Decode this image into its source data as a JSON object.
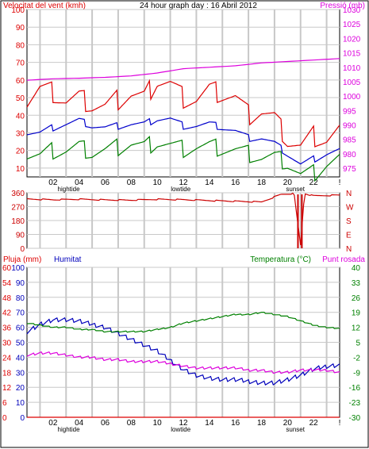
{
  "colors": {
    "wind": "#dd0000",
    "pressure": "#dd00dd",
    "gust_green": "#008000",
    "avg_blue": "#0000cc",
    "direction": "#cc0000",
    "rain": "#dd0000",
    "humidity": "#0000bb",
    "temperature": "#008000",
    "dewpoint": "#dd00dd",
    "grid": "#c8c8c8",
    "text_dark": "#000000"
  },
  "chart_data": [
    {
      "type": "line",
      "title": "24 hour graph day : 16 Abril 2012",
      "left_label": "Velocitat del vent (kmh)",
      "right_label": "Pressió (mb)",
      "ylim": [
        5,
        100
      ],
      "y2lim": [
        972,
        1030
      ],
      "y_ticks": [
        "10",
        "20",
        "30",
        "40",
        "50",
        "60",
        "70",
        "80",
        "90",
        "100"
      ],
      "y2_ticks": [
        "975",
        "980",
        "985",
        "990",
        "995",
        "1000",
        "1005",
        "1010",
        "1015",
        "1020",
        "1025",
        "1030"
      ],
      "x_ticks": [
        "02",
        "04",
        "06",
        "08",
        "10",
        "12",
        "14",
        "16",
        "18",
        "20",
        "22",
        "!"
      ],
      "x_events": [
        {
          "label": "hightide",
          "hour": 3.2
        },
        {
          "label": "lowtide",
          "hour": 11.8
        },
        {
          "label": "sunset",
          "hour": 20.6
        }
      ],
      "series": [
        {
          "name": "wind_max",
          "hours": [
            0,
            1,
            2,
            3,
            4,
            5,
            6,
            7,
            8,
            9,
            10,
            11,
            12,
            13,
            14,
            15,
            16,
            17,
            18,
            19,
            20,
            21,
            22,
            23,
            24
          ],
          "values": [
            48,
            55,
            53,
            48,
            50,
            46,
            45,
            49,
            52,
            50,
            60,
            58,
            50,
            49,
            54,
            52,
            50,
            40,
            42,
            38,
            26,
            22,
            28,
            26,
            31
          ]
        },
        {
          "name": "wind_avg",
          "hours": [
            0,
            1,
            2,
            3,
            4,
            5,
            6,
            7,
            8,
            9,
            10,
            11,
            12,
            13,
            14,
            15,
            16,
            17,
            18,
            19,
            20,
            21,
            22,
            23,
            24
          ],
          "values": [
            30,
            30,
            33,
            35,
            37,
            34,
            33,
            34,
            35,
            35,
            38,
            38,
            34,
            34,
            35,
            33,
            31,
            27,
            27,
            24,
            18,
            12,
            15,
            18,
            20
          ]
        },
        {
          "name": "wind_min",
          "hours": [
            0,
            1,
            2,
            3,
            4,
            5,
            6,
            7,
            8,
            9,
            10,
            11,
            12,
            13,
            14,
            15,
            16,
            17,
            18,
            19,
            20,
            21,
            22,
            23,
            24
          ],
          "values": [
            18,
            17,
            20,
            20,
            22,
            19,
            20,
            22,
            24,
            22,
            25,
            23,
            21,
            22,
            22,
            21,
            20,
            18,
            16,
            16,
            13,
            6,
            7,
            12,
            15
          ]
        },
        {
          "name": "pressure",
          "hours": [
            0,
            2,
            4,
            6,
            8,
            10,
            12,
            14,
            16,
            18,
            20,
            22,
            24
          ],
          "values": [
            1005.5,
            1006,
            1006.2,
            1006.5,
            1007,
            1008,
            1009.5,
            1010,
            1010.5,
            1011.5,
            1012,
            1012.5,
            1013
          ]
        }
      ]
    },
    {
      "type": "line",
      "y_ticks": [
        "0",
        "90",
        "180",
        "270",
        "360"
      ],
      "ylim": [
        0,
        360
      ],
      "compass": [
        "N",
        "W",
        "S",
        "E",
        "N"
      ],
      "series": [
        {
          "name": "wind_direction",
          "hours": [
            0,
            2,
            4,
            6,
            8,
            10,
            12,
            14,
            16,
            18,
            19.5,
            20.5,
            21,
            21.3,
            22,
            24
          ],
          "values": [
            320,
            315,
            318,
            314,
            312,
            318,
            315,
            310,
            305,
            300,
            350,
            355,
            20,
            355,
            340,
            345
          ]
        }
      ]
    },
    {
      "type": "line",
      "left_label": "Pluja (mm)",
      "left_label2": "Humitat",
      "right_label": "Temperatura (°C)",
      "right_label2": "Punt rosada",
      "ylim": [
        0,
        100
      ],
      "y_ticks": [
        "0",
        "10",
        "20",
        "30",
        "40",
        "50",
        "60",
        "70",
        "80",
        "90",
        "100"
      ],
      "y_ticks_rain": [
        "0",
        "6",
        "12",
        "18",
        "24",
        "30",
        "36",
        "42",
        "48",
        "54",
        "60"
      ],
      "y2lim": [
        -30,
        40
      ],
      "y2_ticks": [
        "-30",
        "-23",
        "-16",
        "-9",
        "-2",
        "5",
        "12",
        "19",
        "26",
        "33",
        "40"
      ],
      "x_ticks": [
        "02",
        "04",
        "06",
        "08",
        "10",
        "12",
        "14",
        "16",
        "18",
        "20",
        "22",
        "!"
      ],
      "x_events": [
        {
          "label": "hightide",
          "hour": 3.2
        },
        {
          "label": "lowtide",
          "hour": 11.8
        },
        {
          "label": "sunset",
          "hour": 20.6
        }
      ],
      "series": [
        {
          "name": "humidity",
          "hours": [
            0,
            1,
            2,
            3,
            4,
            5,
            6,
            7,
            8,
            9,
            10,
            11,
            12,
            13,
            14,
            15,
            16,
            17,
            18,
            19,
            20,
            21,
            22,
            23,
            24
          ],
          "values": [
            57,
            62,
            65,
            65,
            64,
            62,
            60,
            56,
            52,
            48,
            44,
            38,
            32,
            28,
            26,
            25,
            25,
            24,
            23,
            23,
            25,
            28,
            32,
            34,
            35
          ]
        },
        {
          "name": "temperature",
          "hours": [
            0,
            1,
            2,
            3,
            4,
            5,
            6,
            7,
            8,
            9,
            10,
            11,
            12,
            13,
            14,
            15,
            16,
            17,
            18,
            19,
            20,
            21,
            22,
            23,
            24
          ],
          "values": [
            14,
            13,
            12,
            12,
            11,
            11,
            10,
            10,
            10,
            10,
            11,
            12,
            14,
            15,
            16,
            17,
            18,
            18,
            19,
            18,
            17,
            15,
            13,
            12,
            11.5
          ]
        },
        {
          "name": "dewpoint",
          "hours": [
            0,
            1,
            2,
            3,
            4,
            5,
            6,
            7,
            8,
            9,
            10,
            11,
            12,
            13,
            14,
            15,
            16,
            17,
            18,
            19,
            20,
            21,
            22,
            23,
            24
          ],
          "values": [
            -1,
            0,
            0,
            -1,
            -2,
            -2,
            -3,
            -3,
            -4,
            -4,
            -4,
            -5,
            -6,
            -7,
            -7,
            -7,
            -7,
            -8,
            -8,
            -9,
            -9,
            -8,
            -8,
            -8,
            -9
          ]
        },
        {
          "name": "rain",
          "hours": [
            0,
            24
          ],
          "values": [
            0,
            0
          ]
        }
      ]
    }
  ]
}
